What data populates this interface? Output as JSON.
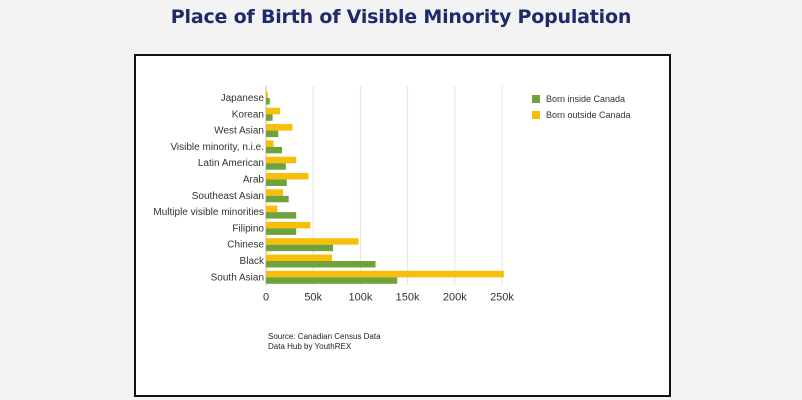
{
  "title": "Place of Birth of Visible Minority Population",
  "colors": {
    "title": "#1f2a6b",
    "born_inside": "#6fa23a",
    "born_outside": "#f7bf0a",
    "grid": "#e4e4e4"
  },
  "source": {
    "line1": "Source: Canadian Census Data",
    "line2": "Data Hub by YouthREX"
  },
  "chart_data": {
    "type": "bar",
    "orientation": "horizontal",
    "title": "",
    "xlabel": "",
    "ylabel": "",
    "categories": [
      "Japanese",
      "Korean",
      "West Asian",
      "Visible minority, n.i.e.",
      "Latin American",
      "Arab",
      "Southeast Asian",
      "Multiple visible minorities",
      "Filipino",
      "Chinese",
      "Black",
      "South Asian"
    ],
    "series": [
      {
        "name": "Born inside Canada",
        "values": [
          4000,
          7000,
          13000,
          17000,
          21000,
          22000,
          24000,
          32000,
          32000,
          71000,
          116000,
          139000
        ]
      },
      {
        "name": "Born outside Canada",
        "values": [
          2000,
          15000,
          28000,
          8000,
          32000,
          45000,
          18000,
          12000,
          47000,
          98000,
          70000,
          252000
        ]
      }
    ],
    "xlim": [
      0,
      250000
    ],
    "xticks": [
      0,
      50000,
      100000,
      150000,
      200000,
      250000
    ],
    "xtick_labels": [
      "0",
      "50k",
      "100k",
      "150k",
      "200k",
      "250k"
    ],
    "grid": "vertical",
    "legend_position": "top-right"
  }
}
